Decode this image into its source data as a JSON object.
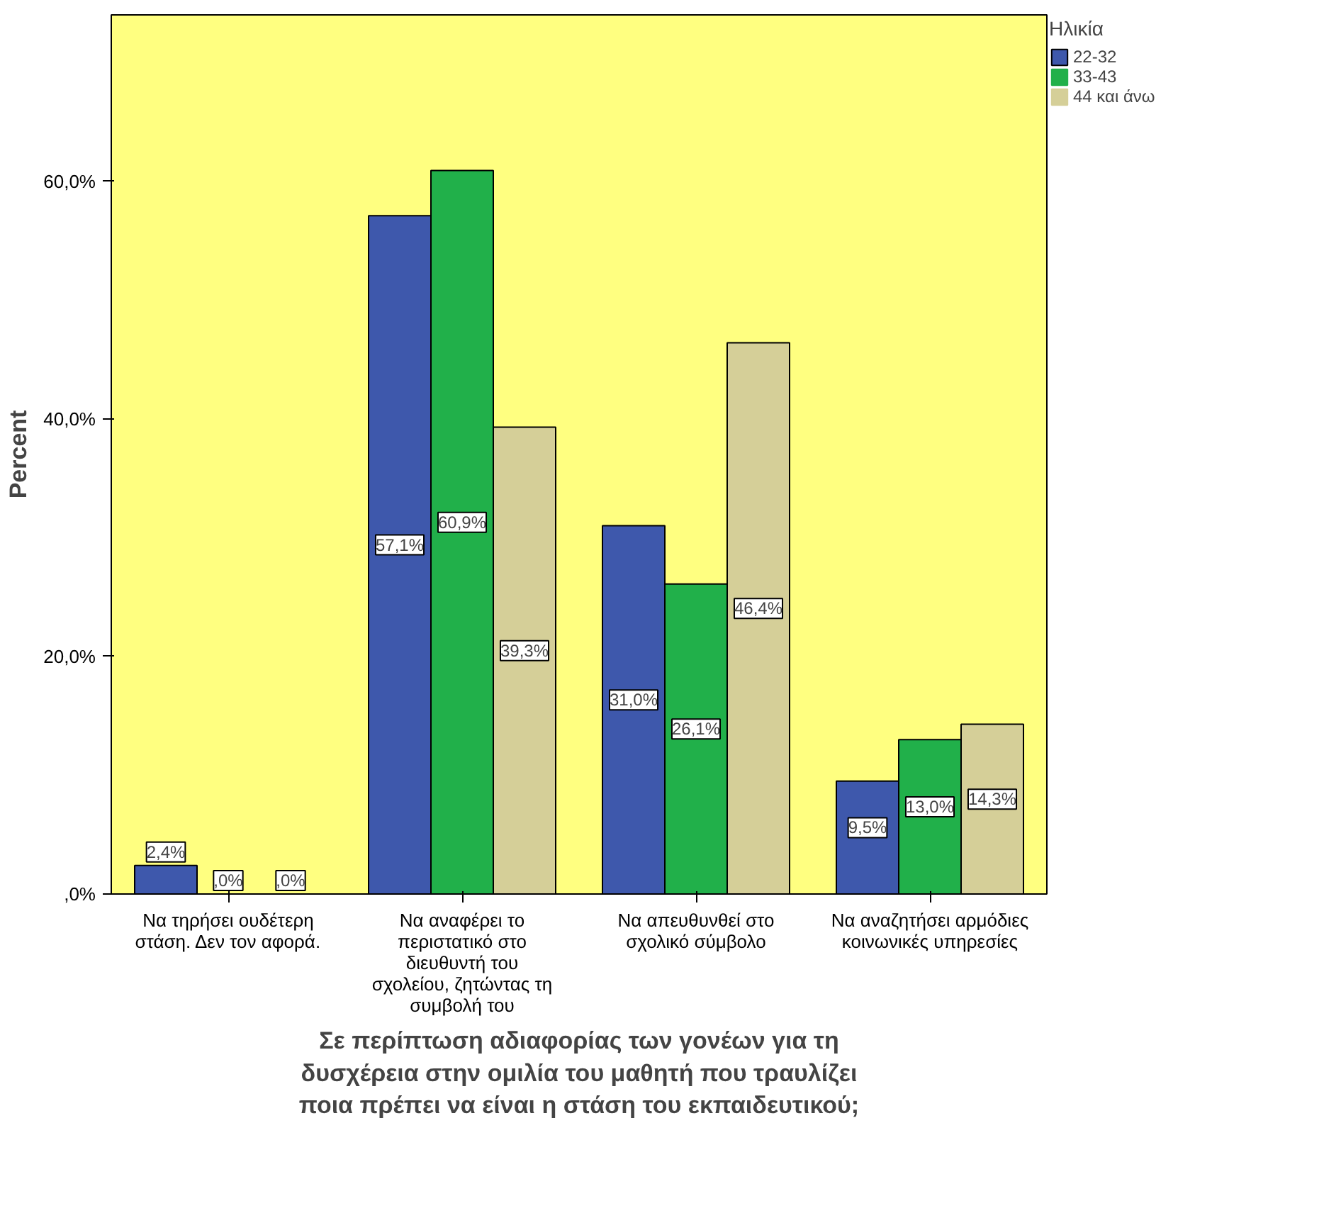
{
  "chart_data": {
    "type": "bar",
    "xlabel": "Σε περίπτωση αδιαφορίας των γονέων για τη δυσχέρεια στην ομιλία του μαθητή που τραυλίζει ποια πρέπει να είναι η στάση του εκπαιδευτικού;",
    "ylabel": "Percent",
    "legend_title": "Ηλικία",
    "legend": "top right",
    "grid": false,
    "categories": [
      "Να τηρήσει ουδέτερη στάση. Δεν τον αφορά.",
      "Να αναφέρει το περιστατικό στο διευθυντή του σχολείου, ζητώντας τη συμβολή του",
      "Να απευθυνθεί στο σχολικό σύμβολο",
      "Να αναζητήσει αρμόδιες κοινωνικές υπηρεσίες"
    ],
    "ylim": [
      0,
      74
    ],
    "yticks": [
      {
        "value": 0,
        "label": ",0%"
      },
      {
        "value": 20,
        "label": "20,0%"
      },
      {
        "value": 40,
        "label": "40,0%"
      },
      {
        "value": 60,
        "label": "60,0%"
      }
    ],
    "series": [
      {
        "name": "22-32",
        "color": "#3e58ac",
        "values": [
          2.4,
          57.1,
          31.0,
          9.5
        ],
        "value_labels": [
          "2,4%",
          "57,1%",
          "31,0%",
          "9,5%"
        ]
      },
      {
        "name": "33-43",
        "color": "#21b04a",
        "values": [
          0,
          60.9,
          26.1,
          13.0
        ],
        "value_labels": [
          ",0%",
          "60,9%",
          "26,1%",
          "13,0%"
        ]
      },
      {
        "name": "44 και άνω",
        "color": "#d5cf98",
        "values": [
          0,
          39.3,
          46.4,
          14.3
        ],
        "value_labels": [
          ",0%",
          "39,3%",
          "46,4%",
          "14,3%"
        ]
      }
    ]
  }
}
